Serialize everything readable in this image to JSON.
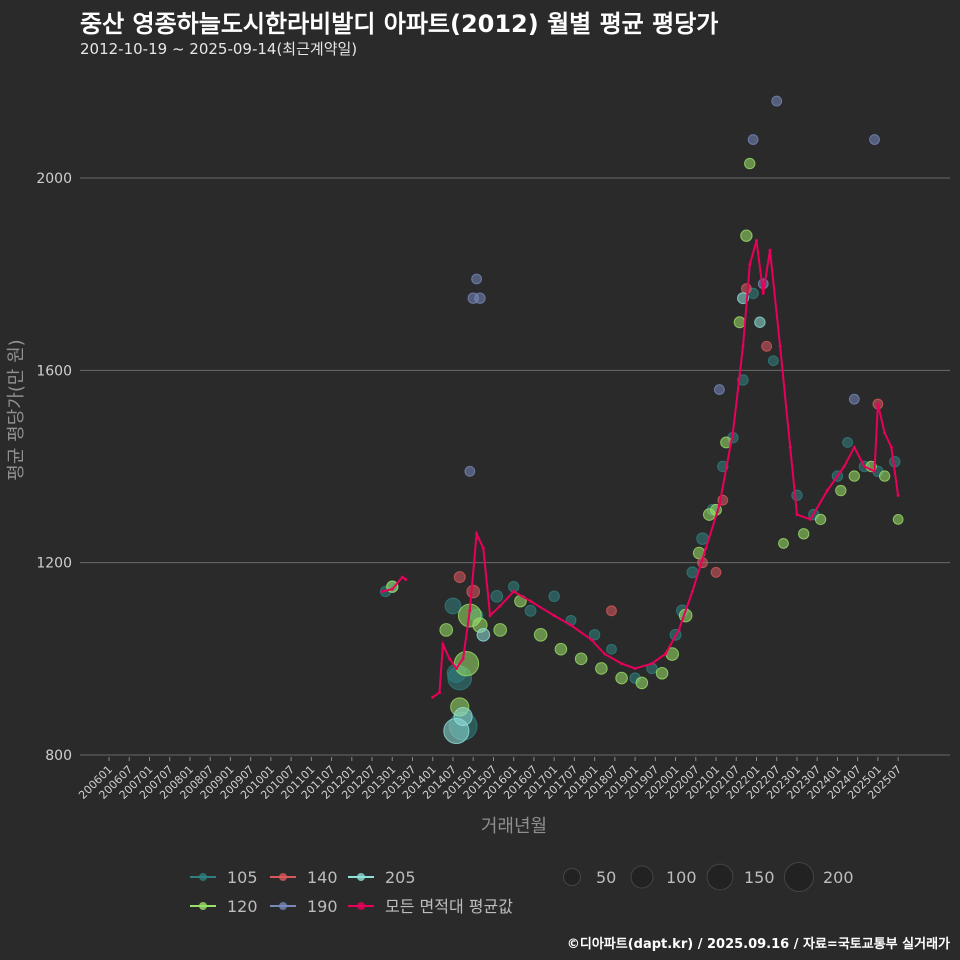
{
  "header": {
    "title": "중산 영종하늘도시한라비발디 아파트(2012) 월별 평균 평당가",
    "subtitle": "2012-10-19 ~ 2025-09-14(최근계약일)"
  },
  "footer": {
    "credit": "©디아파트(dapt.kr) / 2025.09.16 / 자료=국토교통부 실거래가"
  },
  "chart_data": {
    "type": "scatter",
    "title": "중산 영종하늘도시한라비발디 아파트(2012) 월별 평균 평당가",
    "xlabel": "거래년월",
    "ylabel": "평균 평당가(만 원)",
    "ylim": [
      790,
      2210
    ],
    "xlim": [
      "2006-01",
      "2025-12"
    ],
    "yticks": [
      800,
      1200,
      1600,
      2000
    ],
    "xticks": [
      "200601",
      "200607",
      "200701",
      "200707",
      "200801",
      "200807",
      "200901",
      "200907",
      "201001",
      "201007",
      "201101",
      "201107",
      "201201",
      "201207",
      "201301",
      "201307",
      "201401",
      "201407",
      "201501",
      "201507",
      "201601",
      "201607",
      "201701",
      "201707",
      "201801",
      "201807",
      "201901",
      "201907",
      "202001",
      "202007",
      "202101",
      "202107",
      "202201",
      "202207",
      "202301",
      "202307",
      "202401",
      "202407",
      "202501",
      "202507"
    ],
    "grid": true,
    "legend_position": "bottom",
    "area_legend": [
      {
        "name": "105",
        "color": "#2f7f80"
      },
      {
        "name": "140",
        "color": "#d9585c"
      },
      {
        "name": "205",
        "color": "#8fe0d8"
      },
      {
        "name": "120",
        "color": "#9be066"
      },
      {
        "name": "190",
        "color": "#7788bb"
      },
      {
        "name": "모든 면적대 평균값",
        "color": "#e8005a"
      }
    ],
    "size_legend": [
      {
        "label": "50",
        "value": 50
      },
      {
        "label": "100",
        "value": 100
      },
      {
        "label": "150",
        "value": 150
      },
      {
        "label": "200",
        "value": 200
      }
    ],
    "series": [
      {
        "name": "105",
        "color": "#2f7f80",
        "points": [
          [
            "2012-11",
            1140,
            10
          ],
          [
            "2013-01",
            1150,
            12
          ],
          [
            "2014-07",
            1110,
            40
          ],
          [
            "2014-08",
            970,
            60
          ],
          [
            "2014-09",
            960,
            120
          ],
          [
            "2014-10",
            860,
            180
          ],
          [
            "2015-02",
            1090,
            20
          ],
          [
            "2015-08",
            1130,
            15
          ],
          [
            "2016-01",
            1150,
            10
          ],
          [
            "2016-06",
            1100,
            12
          ],
          [
            "2017-01",
            1130,
            10
          ],
          [
            "2017-06",
            1080,
            8
          ],
          [
            "2018-01",
            1050,
            10
          ],
          [
            "2018-06",
            1020,
            8
          ],
          [
            "2019-01",
            960,
            10
          ],
          [
            "2019-06",
            980,
            10
          ],
          [
            "2020-01",
            1050,
            12
          ],
          [
            "2020-03",
            1100,
            15
          ],
          [
            "2020-06",
            1180,
            12
          ],
          [
            "2020-09",
            1250,
            15
          ],
          [
            "2020-12",
            1310,
            12
          ],
          [
            "2021-03",
            1400,
            10
          ],
          [
            "2021-06",
            1460,
            10
          ],
          [
            "2021-09",
            1580,
            10
          ],
          [
            "2021-12",
            1760,
            10
          ],
          [
            "2022-06",
            1620,
            8
          ],
          [
            "2023-01",
            1340,
            10
          ],
          [
            "2023-06",
            1300,
            10
          ],
          [
            "2024-01",
            1380,
            10
          ],
          [
            "2024-04",
            1450,
            8
          ],
          [
            "2024-09",
            1400,
            10
          ],
          [
            "2025-01",
            1390,
            10
          ],
          [
            "2025-06",
            1410,
            10
          ]
        ]
      },
      {
        "name": "120",
        "color": "#9be066",
        "points": [
          [
            "2013-01",
            1150,
            14
          ],
          [
            "2014-05",
            1060,
            20
          ],
          [
            "2014-09",
            900,
            60
          ],
          [
            "2014-11",
            990,
            130
          ],
          [
            "2014-12",
            1090,
            110
          ],
          [
            "2015-03",
            1070,
            30
          ],
          [
            "2015-09",
            1060,
            20
          ],
          [
            "2016-03",
            1120,
            15
          ],
          [
            "2016-09",
            1050,
            20
          ],
          [
            "2017-03",
            1020,
            15
          ],
          [
            "2017-09",
            1000,
            15
          ],
          [
            "2018-03",
            980,
            15
          ],
          [
            "2018-09",
            960,
            15
          ],
          [
            "2019-03",
            950,
            15
          ],
          [
            "2019-09",
            970,
            15
          ],
          [
            "2019-12",
            1010,
            20
          ],
          [
            "2020-04",
            1090,
            20
          ],
          [
            "2020-08",
            1220,
            15
          ],
          [
            "2020-11",
            1300,
            15
          ],
          [
            "2021-01",
            1310,
            12
          ],
          [
            "2021-04",
            1450,
            12
          ],
          [
            "2021-08",
            1700,
            12
          ],
          [
            "2021-10",
            1880,
            14
          ],
          [
            "2021-11",
            2030,
            10
          ],
          [
            "2022-09",
            1240,
            8
          ],
          [
            "2023-03",
            1260,
            10
          ],
          [
            "2023-08",
            1290,
            10
          ],
          [
            "2024-02",
            1350,
            10
          ],
          [
            "2024-06",
            1380,
            10
          ],
          [
            "2024-11",
            1400,
            10
          ],
          [
            "2025-03",
            1380,
            10
          ],
          [
            "2025-07",
            1290,
            8
          ]
        ]
      },
      {
        "name": "140",
        "color": "#d9585c",
        "points": [
          [
            "2014-09",
            1170,
            12
          ],
          [
            "2015-01",
            1140,
            20
          ],
          [
            "2018-06",
            1100,
            8
          ],
          [
            "2020-09",
            1200,
            8
          ],
          [
            "2021-01",
            1180,
            8
          ],
          [
            "2021-03",
            1330,
            8
          ],
          [
            "2021-10",
            1770,
            8
          ],
          [
            "2022-04",
            1650,
            8
          ],
          [
            "2025-01",
            1530,
            8
          ]
        ]
      },
      {
        "name": "190",
        "color": "#7788bb",
        "points": [
          [
            "2014-12",
            1390,
            8
          ],
          [
            "2015-01",
            1750,
            10
          ],
          [
            "2015-03",
            1750,
            10
          ],
          [
            "2015-02",
            1790,
            8
          ],
          [
            "2021-02",
            1560,
            8
          ],
          [
            "2021-12",
            2080,
            8
          ],
          [
            "2022-03",
            1780,
            8
          ],
          [
            "2022-07",
            2160,
            8
          ],
          [
            "2024-12",
            2080,
            8
          ],
          [
            "2024-06",
            1540,
            8
          ]
        ]
      },
      {
        "name": "205",
        "color": "#8fe0d8",
        "points": [
          [
            "2014-08",
            850,
            140
          ],
          [
            "2014-10",
            880,
            60
          ],
          [
            "2015-04",
            1050,
            20
          ],
          [
            "2021-09",
            1750,
            12
          ],
          [
            "2022-02",
            1700,
            10
          ]
        ]
      },
      {
        "name": "모든 면적대 평균값",
        "color": "#e8005a",
        "line": [
          [
            "2012-10",
            1140
          ],
          [
            "2013-01",
            1145
          ],
          [
            "2013-04",
            1170
          ],
          [
            "2013-05",
            1165
          ],
          [
            "2014-01",
            920
          ],
          [
            "2014-03",
            930
          ],
          [
            "2014-04",
            1030
          ],
          [
            "2014-06",
            1000
          ],
          [
            "2014-08",
            980
          ],
          [
            "2014-10",
            1000
          ],
          [
            "2014-12",
            1100
          ],
          [
            "2015-02",
            1260
          ],
          [
            "2015-04",
            1230
          ],
          [
            "2015-06",
            1090
          ],
          [
            "2015-09",
            1110
          ],
          [
            "2016-01",
            1140
          ],
          [
            "2016-06",
            1120
          ],
          [
            "2017-01",
            1090
          ],
          [
            "2017-06",
            1070
          ],
          [
            "2017-12",
            1040
          ],
          [
            "2018-04",
            1010
          ],
          [
            "2018-09",
            990
          ],
          [
            "2019-01",
            980
          ],
          [
            "2019-06",
            990
          ],
          [
            "2019-10",
            1010
          ],
          [
            "2020-02",
            1060
          ],
          [
            "2020-06",
            1140
          ],
          [
            "2020-10",
            1230
          ],
          [
            "2021-02",
            1320
          ],
          [
            "2021-06",
            1470
          ],
          [
            "2021-09",
            1650
          ],
          [
            "2021-11",
            1820
          ],
          [
            "2022-01",
            1870
          ],
          [
            "2022-03",
            1760
          ],
          [
            "2022-05",
            1850
          ],
          [
            "2022-08",
            1650
          ],
          [
            "2022-11",
            1440
          ],
          [
            "2023-01",
            1300
          ],
          [
            "2023-05",
            1290
          ],
          [
            "2023-10",
            1350
          ],
          [
            "2024-03",
            1400
          ],
          [
            "2024-06",
            1440
          ],
          [
            "2024-09",
            1400
          ],
          [
            "2024-12",
            1390
          ],
          [
            "2025-01",
            1530
          ],
          [
            "2025-03",
            1470
          ],
          [
            "2025-05",
            1440
          ],
          [
            "2025-07",
            1340
          ]
        ]
      }
    ]
  }
}
